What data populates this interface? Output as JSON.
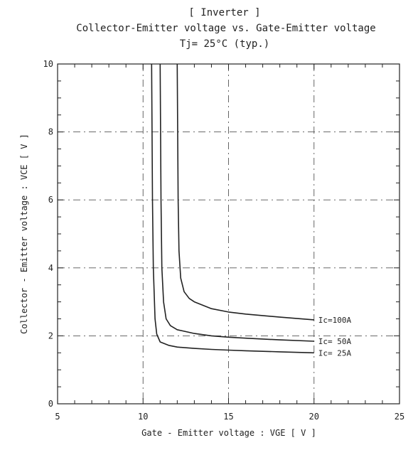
{
  "chart_data": {
    "type": "line",
    "title": "[ Inverter ]",
    "subtitle": "Collector-Emitter voltage  vs. Gate-Emitter voltage",
    "conditions": "Tj= 25°C     (typ.)",
    "xlabel": "Gate - Emitter voltage  :  VGE  [ V ]",
    "ylabel": "Collector - Emitter voltage  :  VCE  [ V ]",
    "xlim": [
      5,
      25
    ],
    "ylim": [
      0,
      10
    ],
    "xticks": [
      5,
      10,
      15,
      20,
      25
    ],
    "yticks": [
      0,
      2,
      4,
      6,
      8,
      10
    ],
    "grid": true,
    "legend": "none",
    "colors": {
      "line": "#222222",
      "grid": "#555555",
      "frame": "#222222",
      "background": "#ffffff"
    },
    "series": [
      {
        "name": "Ic= 25A",
        "x": [
          10.5,
          10.55,
          10.6,
          10.7,
          10.8,
          11.0,
          11.5,
          12,
          13,
          14,
          15,
          16,
          18,
          20
        ],
        "y": [
          10,
          6,
          4,
          2.5,
          2.05,
          1.82,
          1.72,
          1.67,
          1.63,
          1.6,
          1.58,
          1.56,
          1.53,
          1.5
        ]
      },
      {
        "name": "Ic= 50A",
        "x": [
          11.0,
          11.05,
          11.1,
          11.2,
          11.35,
          11.6,
          12,
          13,
          14,
          15,
          16,
          18,
          20
        ],
        "y": [
          10,
          6,
          4,
          3,
          2.5,
          2.3,
          2.18,
          2.07,
          2.0,
          1.96,
          1.93,
          1.88,
          1.84
        ]
      },
      {
        "name": "Ic=100A",
        "x": [
          12.0,
          12.05,
          12.1,
          12.2,
          12.4,
          12.7,
          13,
          14,
          15,
          16,
          18,
          20
        ],
        "y": [
          10,
          6,
          4.5,
          3.7,
          3.3,
          3.1,
          3.0,
          2.8,
          2.7,
          2.64,
          2.55,
          2.47
        ]
      }
    ]
  }
}
